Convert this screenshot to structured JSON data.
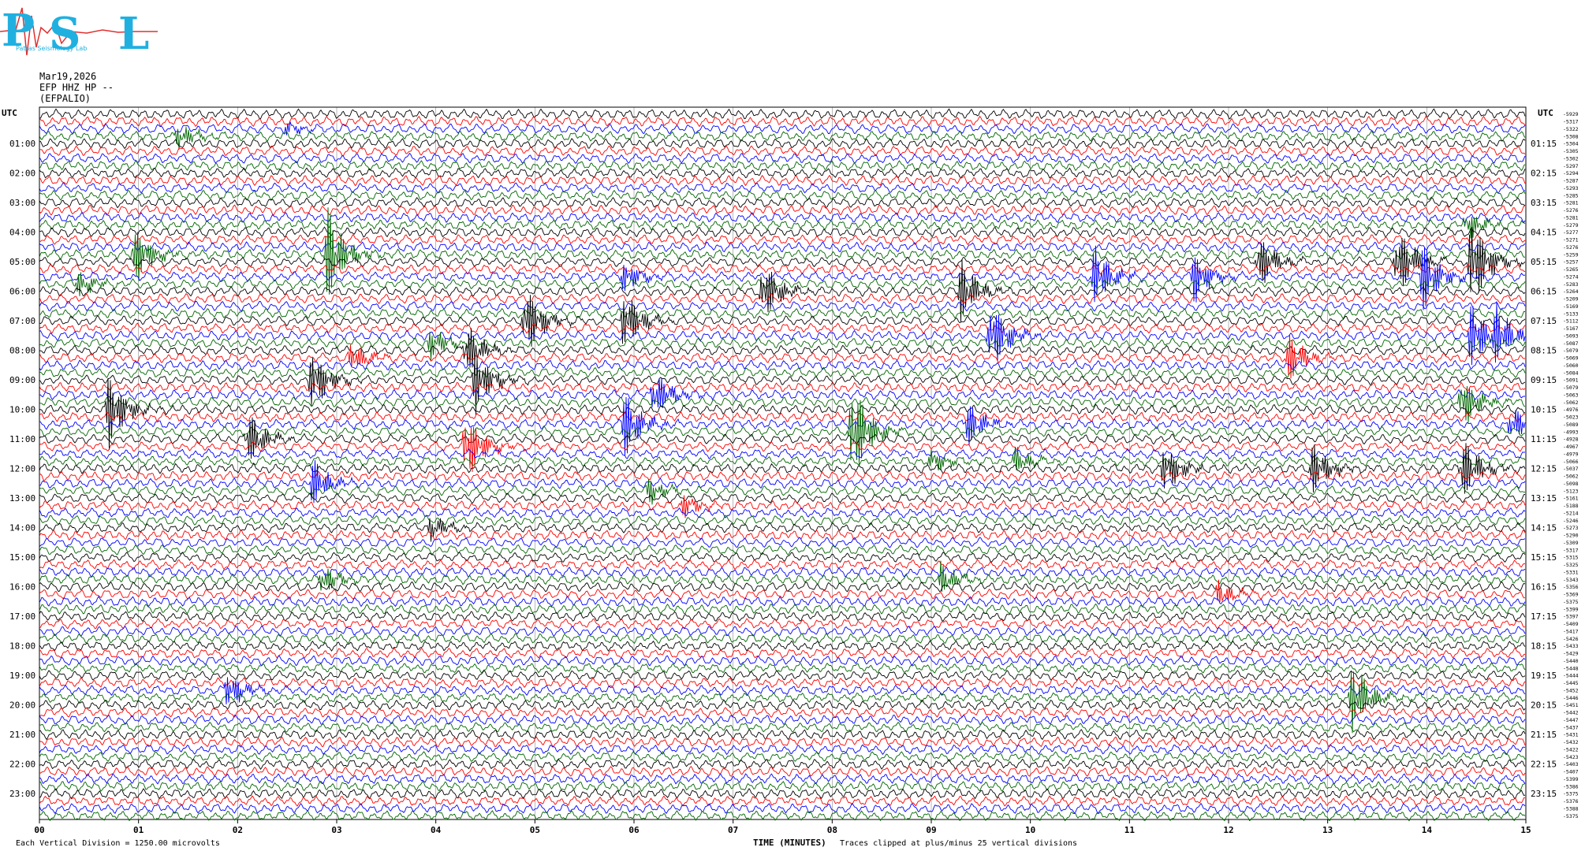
{
  "header": {
    "date": "Mar19,2026",
    "station": "EFP HHZ HP --",
    "station_name": "(EFPALIO)"
  },
  "logo": {
    "text": "PSL",
    "subtext": "Patras Seismology Lab",
    "colors": [
      "#20b0e0",
      "#e03030"
    ]
  },
  "labels": {
    "utc_left": "UTC",
    "utc_right": "UTC",
    "x_axis_title": "TIME (MINUTES)",
    "clip_note": "Traces clipped at plus/minus 25 vertical divisions",
    "scale_note": "Each Vertical Division = 1250.00 microvolts"
  },
  "chart_data": {
    "type": "line",
    "title": "",
    "xlabel": "TIME (MINUTES)",
    "xlim": [
      0,
      15
    ],
    "x_ticks": [
      "00",
      "01",
      "02",
      "03",
      "04",
      "05",
      "06",
      "07",
      "08",
      "09",
      "10",
      "11",
      "12",
      "13",
      "14",
      "15"
    ],
    "row_minutes": 15,
    "n_traces": 96,
    "trace_colors": [
      "#000000",
      "#ff0000",
      "#0000ff",
      "#006600"
    ],
    "left_hour_labels": [
      "01:00",
      "02:00",
      "03:00",
      "04:00",
      "05:00",
      "06:00",
      "07:00",
      "08:00",
      "09:00",
      "10:00",
      "11:00",
      "12:00",
      "13:00",
      "14:00",
      "15:00",
      "16:00",
      "17:00",
      "18:00",
      "19:00",
      "20:00",
      "21:00",
      "22:00",
      "23:00"
    ],
    "right_hour_labels": [
      "01:15",
      "02:15",
      "03:15",
      "04:15",
      "05:15",
      "06:15",
      "07:15",
      "08:15",
      "09:15",
      "10:15",
      "11:15",
      "12:15",
      "13:15",
      "14:15",
      "15:15",
      "16:15",
      "17:15",
      "18:15",
      "19:15",
      "20:15",
      "21:15",
      "22:15",
      "23:15"
    ],
    "trace_offsets": [
      "-5929",
      "-5317",
      "-5322",
      "-5308",
      "-5304",
      "-5305",
      "-5302",
      "-5297",
      "-5294",
      "-5287",
      "-5293",
      "-5285",
      "-5281",
      "-5276",
      "-5281",
      "-5279",
      "-5277",
      "-5271",
      "-5276",
      "-5259",
      "-5257",
      "-5265",
      "-5274",
      "-5283",
      "-5264",
      "-5209",
      "-5169",
      "-5133",
      "-5112",
      "-5167",
      "-5093",
      "-5087",
      "-5079",
      "-5069",
      "-5060",
      "-5084",
      "-5091",
      "-5079",
      "-5063",
      "-5062",
      "-4976",
      "-5023",
      "-5089",
      "-4993",
      "-4928",
      "-4967",
      "-4979",
      "-5066",
      "-5037",
      "-5062",
      "-5098",
      "-5123",
      "-5161",
      "-5188",
      "-5214",
      "-5246",
      "-5273",
      "-5290",
      "-5309",
      "-5317",
      "-5315",
      "-5325",
      "-5331",
      "-5343",
      "-5356",
      "-5369",
      "-5375",
      "-5399",
      "-5397",
      "-5409",
      "-5417",
      "-5426",
      "-5433",
      "-5429",
      "-5440",
      "-5448",
      "-5444",
      "-5445",
      "-5452",
      "-5446",
      "-5451",
      "-5442",
      "-5447",
      "-5437",
      "-5431",
      "-5432",
      "-5422",
      "-5423",
      "-5403",
      "-5407",
      "-5399",
      "-5386",
      "-5375",
      "-5376",
      "-5388",
      "-5375"
    ],
    "events": [
      {
        "trace": 2,
        "minute": 2.5,
        "amp": 0.4
      },
      {
        "trace": 3,
        "minute": 1.4,
        "amp": 0.8
      },
      {
        "trace": 15,
        "minute": 14.4,
        "amp": 1.0
      },
      {
        "trace": 19,
        "minute": 2.9,
        "amp": 3.2
      },
      {
        "trace": 19,
        "minute": 0.95,
        "amp": 2.0
      },
      {
        "trace": 20,
        "minute": 12.3,
        "amp": 1.8
      },
      {
        "trace": 20,
        "minute": 13.7,
        "amp": 2.4
      },
      {
        "trace": 20,
        "minute": 14.45,
        "amp": 3.2
      },
      {
        "trace": 22,
        "minute": 5.9,
        "amp": 1.0
      },
      {
        "trace": 22,
        "minute": 10.65,
        "amp": 2.0
      },
      {
        "trace": 22,
        "minute": 11.65,
        "amp": 1.6
      },
      {
        "trace": 22,
        "minute": 13.95,
        "amp": 2.4
      },
      {
        "trace": 23,
        "minute": 0.4,
        "amp": 0.8
      },
      {
        "trace": 24,
        "minute": 7.3,
        "amp": 2.0
      },
      {
        "trace": 24,
        "minute": 9.3,
        "amp": 2.0
      },
      {
        "trace": 28,
        "minute": 4.9,
        "amp": 2.4
      },
      {
        "trace": 28,
        "minute": 5.9,
        "amp": 2.0
      },
      {
        "trace": 30,
        "minute": 9.6,
        "amp": 2.4
      },
      {
        "trace": 30,
        "minute": 14.45,
        "amp": 2.2
      },
      {
        "trace": 30,
        "minute": 14.7,
        "amp": 1.6
      },
      {
        "trace": 31,
        "minute": 3.95,
        "amp": 1.0
      },
      {
        "trace": 32,
        "minute": 4.3,
        "amp": 1.8
      },
      {
        "trace": 33,
        "minute": 3.15,
        "amp": 1.0
      },
      {
        "trace": 33,
        "minute": 12.6,
        "amp": 1.6
      },
      {
        "trace": 36,
        "minute": 2.75,
        "amp": 2.0
      },
      {
        "trace": 36,
        "minute": 4.4,
        "amp": 2.0
      },
      {
        "trace": 38,
        "minute": 6.2,
        "amp": 1.6
      },
      {
        "trace": 39,
        "minute": 14.35,
        "amp": 1.8
      },
      {
        "trace": 40,
        "minute": 0.7,
        "amp": 2.4
      },
      {
        "trace": 42,
        "minute": 5.9,
        "amp": 2.2
      },
      {
        "trace": 42,
        "minute": 9.35,
        "amp": 1.6
      },
      {
        "trace": 42,
        "minute": 14.85,
        "amp": 1.2
      },
      {
        "trace": 43,
        "minute": 8.2,
        "amp": 3.5
      },
      {
        "trace": 44,
        "minute": 2.1,
        "amp": 1.8
      },
      {
        "trace": 45,
        "minute": 4.3,
        "amp": 2.4
      },
      {
        "trace": 47,
        "minute": 9.0,
        "amp": 0.8
      },
      {
        "trace": 47,
        "minute": 9.85,
        "amp": 0.8
      },
      {
        "trace": 48,
        "minute": 11.35,
        "amp": 1.6
      },
      {
        "trace": 48,
        "minute": 12.85,
        "amp": 1.6
      },
      {
        "trace": 48,
        "minute": 14.35,
        "amp": 2.2
      },
      {
        "trace": 50,
        "minute": 2.75,
        "amp": 1.6
      },
      {
        "trace": 51,
        "minute": 6.15,
        "amp": 0.8
      },
      {
        "trace": 53,
        "minute": 6.5,
        "amp": 0.7
      },
      {
        "trace": 56,
        "minute": 3.95,
        "amp": 0.8
      },
      {
        "trace": 63,
        "minute": 2.85,
        "amp": 1.0
      },
      {
        "trace": 63,
        "minute": 9.1,
        "amp": 1.0
      },
      {
        "trace": 65,
        "minute": 11.9,
        "amp": 0.8
      },
      {
        "trace": 78,
        "minute": 1.9,
        "amp": 1.2
      },
      {
        "trace": 79,
        "minute": 13.25,
        "amp": 2.4
      }
    ]
  }
}
